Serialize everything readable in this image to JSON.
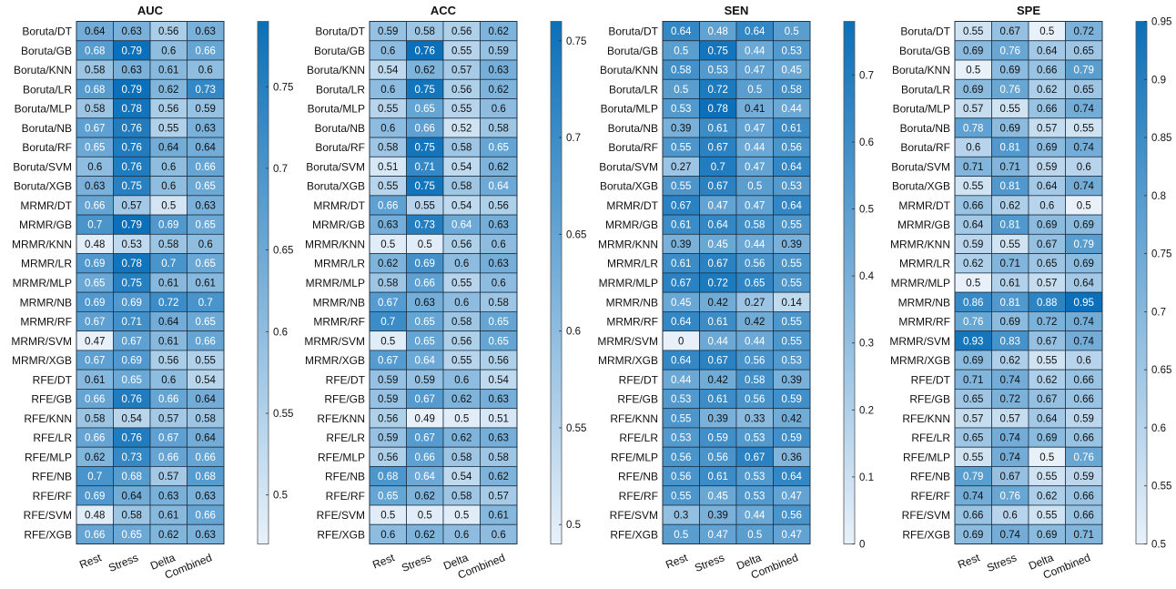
{
  "chart_data": {
    "type": "heatmap",
    "rows": [
      "Boruta/DT",
      "Boruta/GB",
      "Boruta/KNN",
      "Boruta/LR",
      "Boruta/MLP",
      "Boruta/NB",
      "Boruta/RF",
      "Boruta/SVM",
      "Boruta/XGB",
      "MRMR/DT",
      "MRMR/GB",
      "MRMR/KNN",
      "MRMR/LR",
      "MRMR/MLP",
      "MRMR/NB",
      "MRMR/RF",
      "MRMR/SVM",
      "MRMR/XGB",
      "RFE/DT",
      "RFE/GB",
      "RFE/KNN",
      "RFE/LR",
      "RFE/MLP",
      "RFE/NB",
      "RFE/RF",
      "RFE/SVM",
      "RFE/XGB"
    ],
    "columns": [
      "Rest",
      "Stress",
      "Delta",
      "Combined"
    ],
    "colormap": {
      "low": "#e8f1fa",
      "high": "#0b70b9",
      "border": "#1f3447"
    },
    "panels": [
      {
        "title": "AUC",
        "clim": [
          0.47,
          0.79
        ],
        "colorbar_ticks": [
          "0.5",
          "0.55",
          "0.6",
          "0.65",
          "0.7",
          "0.75"
        ],
        "values": [
          [
            0.64,
            0.63,
            0.56,
            0.63
          ],
          [
            0.68,
            0.79,
            0.6,
            0.66
          ],
          [
            0.58,
            0.63,
            0.61,
            0.6
          ],
          [
            0.68,
            0.79,
            0.62,
            0.73
          ],
          [
            0.58,
            0.78,
            0.56,
            0.59
          ],
          [
            0.67,
            0.76,
            0.55,
            0.63
          ],
          [
            0.65,
            0.76,
            0.64,
            0.64
          ],
          [
            0.6,
            0.76,
            0.6,
            0.66
          ],
          [
            0.63,
            0.75,
            0.6,
            0.65
          ],
          [
            0.66,
            0.57,
            0.5,
            0.63
          ],
          [
            0.7,
            0.79,
            0.69,
            0.65
          ],
          [
            0.48,
            0.53,
            0.58,
            0.6
          ],
          [
            0.69,
            0.78,
            0.7,
            0.65
          ],
          [
            0.65,
            0.75,
            0.61,
            0.61
          ],
          [
            0.69,
            0.69,
            0.72,
            0.7
          ],
          [
            0.67,
            0.71,
            0.64,
            0.65
          ],
          [
            0.47,
            0.67,
            0.61,
            0.66
          ],
          [
            0.67,
            0.69,
            0.56,
            0.55
          ],
          [
            0.61,
            0.65,
            0.6,
            0.54
          ],
          [
            0.66,
            0.76,
            0.66,
            0.64
          ],
          [
            0.58,
            0.54,
            0.57,
            0.58
          ],
          [
            0.66,
            0.76,
            0.67,
            0.64
          ],
          [
            0.62,
            0.73,
            0.66,
            0.66
          ],
          [
            0.7,
            0.68,
            0.57,
            0.68
          ],
          [
            0.69,
            0.64,
            0.63,
            0.63
          ],
          [
            0.48,
            0.58,
            0.61,
            0.66
          ],
          [
            0.66,
            0.65,
            0.62,
            0.63
          ]
        ]
      },
      {
        "title": "ACC",
        "clim": [
          0.49,
          0.76
        ],
        "colorbar_ticks": [
          "0.5",
          "0.55",
          "0.6",
          "0.65",
          "0.7",
          "0.75"
        ],
        "values": [
          [
            0.59,
            0.58,
            0.56,
            0.62
          ],
          [
            0.6,
            0.76,
            0.55,
            0.59
          ],
          [
            0.54,
            0.62,
            0.57,
            0.63
          ],
          [
            0.6,
            0.75,
            0.56,
            0.62
          ],
          [
            0.55,
            0.65,
            0.55,
            0.6
          ],
          [
            0.6,
            0.66,
            0.52,
            0.58
          ],
          [
            0.58,
            0.75,
            0.58,
            0.65
          ],
          [
            0.51,
            0.71,
            0.54,
            0.62
          ],
          [
            0.55,
            0.75,
            0.58,
            0.64
          ],
          [
            0.66,
            0.55,
            0.54,
            0.56
          ],
          [
            0.63,
            0.73,
            0.64,
            0.63
          ],
          [
            0.5,
            0.5,
            0.56,
            0.6
          ],
          [
            0.62,
            0.69,
            0.6,
            0.63
          ],
          [
            0.58,
            0.66,
            0.55,
            0.6
          ],
          [
            0.67,
            0.63,
            0.6,
            0.58
          ],
          [
            0.7,
            0.65,
            0.58,
            0.65
          ],
          [
            0.5,
            0.65,
            0.56,
            0.65
          ],
          [
            0.67,
            0.64,
            0.55,
            0.56
          ],
          [
            0.59,
            0.59,
            0.6,
            0.54
          ],
          [
            0.59,
            0.67,
            0.62,
            0.63
          ],
          [
            0.56,
            0.49,
            0.5,
            0.51
          ],
          [
            0.59,
            0.67,
            0.62,
            0.63
          ],
          [
            0.56,
            0.66,
            0.58,
            0.58
          ],
          [
            0.68,
            0.64,
            0.54,
            0.62
          ],
          [
            0.65,
            0.62,
            0.58,
            0.57
          ],
          [
            0.5,
            0.5,
            0.5,
            0.61
          ],
          [
            0.6,
            0.62,
            0.6,
            0.6
          ]
        ]
      },
      {
        "title": "SEN",
        "clim": [
          0,
          0.78
        ],
        "colorbar_ticks": [
          "0",
          "0.1",
          "0.2",
          "0.3",
          "0.4",
          "0.5",
          "0.6",
          "0.7"
        ],
        "values": [
          [
            0.64,
            0.48,
            0.64,
            0.5
          ],
          [
            0.5,
            0.75,
            0.44,
            0.53
          ],
          [
            0.58,
            0.53,
            0.47,
            0.45
          ],
          [
            0.5,
            0.72,
            0.5,
            0.58
          ],
          [
            0.53,
            0.78,
            0.41,
            0.44
          ],
          [
            0.39,
            0.61,
            0.47,
            0.61
          ],
          [
            0.55,
            0.67,
            0.44,
            0.56
          ],
          [
            0.27,
            0.7,
            0.47,
            0.64
          ],
          [
            0.55,
            0.67,
            0.5,
            0.53
          ],
          [
            0.67,
            0.47,
            0.47,
            0.64
          ],
          [
            0.61,
            0.64,
            0.58,
            0.55
          ],
          [
            0.39,
            0.45,
            0.44,
            0.39
          ],
          [
            0.61,
            0.67,
            0.56,
            0.55
          ],
          [
            0.67,
            0.72,
            0.65,
            0.55
          ],
          [
            0.45,
            0.42,
            0.27,
            0.14
          ],
          [
            0.64,
            0.61,
            0.42,
            0.55
          ],
          [
            0,
            0.44,
            0.44,
            0.55
          ],
          [
            0.64,
            0.67,
            0.56,
            0.53
          ],
          [
            0.44,
            0.42,
            0.58,
            0.39
          ],
          [
            0.53,
            0.61,
            0.56,
            0.59
          ],
          [
            0.55,
            0.39,
            0.33,
            0.42
          ],
          [
            0.53,
            0.59,
            0.53,
            0.59
          ],
          [
            0.56,
            0.56,
            0.67,
            0.36
          ],
          [
            0.56,
            0.61,
            0.53,
            0.64
          ],
          [
            0.55,
            0.45,
            0.53,
            0.47
          ],
          [
            0.3,
            0.39,
            0.44,
            0.56
          ],
          [
            0.5,
            0.47,
            0.5,
            0.47
          ]
        ]
      },
      {
        "title": "SPE",
        "clim": [
          0.5,
          0.95
        ],
        "colorbar_ticks": [
          "0.5",
          "0.55",
          "0.6",
          "0.65",
          "0.7",
          "0.75",
          "0.8",
          "0.85",
          "0.9",
          "0.95"
        ],
        "values": [
          [
            0.55,
            0.67,
            0.5,
            0.72
          ],
          [
            0.69,
            0.76,
            0.64,
            0.65
          ],
          [
            0.5,
            0.69,
            0.66,
            0.79
          ],
          [
            0.69,
            0.76,
            0.62,
            0.65
          ],
          [
            0.57,
            0.55,
            0.66,
            0.74
          ],
          [
            0.78,
            0.69,
            0.57,
            0.55
          ],
          [
            0.6,
            0.81,
            0.69,
            0.74
          ],
          [
            0.71,
            0.71,
            0.59,
            0.6
          ],
          [
            0.55,
            0.81,
            0.64,
            0.74
          ],
          [
            0.66,
            0.62,
            0.6,
            0.5
          ],
          [
            0.64,
            0.81,
            0.69,
            0.69
          ],
          [
            0.59,
            0.55,
            0.67,
            0.79
          ],
          [
            0.62,
            0.71,
            0.65,
            0.69
          ],
          [
            0.5,
            0.61,
            0.57,
            0.64
          ],
          [
            0.86,
            0.81,
            0.88,
            0.95
          ],
          [
            0.76,
            0.69,
            0.72,
            0.74
          ],
          [
            0.93,
            0.83,
            0.67,
            0.74
          ],
          [
            0.69,
            0.62,
            0.55,
            0.6
          ],
          [
            0.71,
            0.74,
            0.62,
            0.66
          ],
          [
            0.65,
            0.72,
            0.67,
            0.66
          ],
          [
            0.57,
            0.57,
            0.64,
            0.59
          ],
          [
            0.65,
            0.74,
            0.69,
            0.66
          ],
          [
            0.55,
            0.74,
            0.5,
            0.76
          ],
          [
            0.79,
            0.67,
            0.55,
            0.59
          ],
          [
            0.74,
            0.76,
            0.62,
            0.66
          ],
          [
            0.66,
            0.6,
            0.55,
            0.66
          ],
          [
            0.69,
            0.74,
            0.69,
            0.71
          ]
        ]
      }
    ]
  }
}
